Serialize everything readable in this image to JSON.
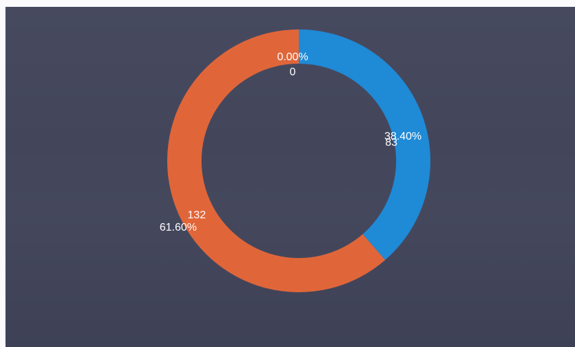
{
  "chart_data": {
    "type": "pie",
    "donut": true,
    "title": "",
    "categories": [
      "",
      "",
      ""
    ],
    "values": [
      0,
      83,
      132
    ],
    "percent_labels": [
      "0.00%",
      "38.40%",
      "61.60%"
    ],
    "colors": [
      "#e0663a",
      "#1f8ad6",
      "#e0663a"
    ],
    "background": "#45485d",
    "legend": "none"
  }
}
